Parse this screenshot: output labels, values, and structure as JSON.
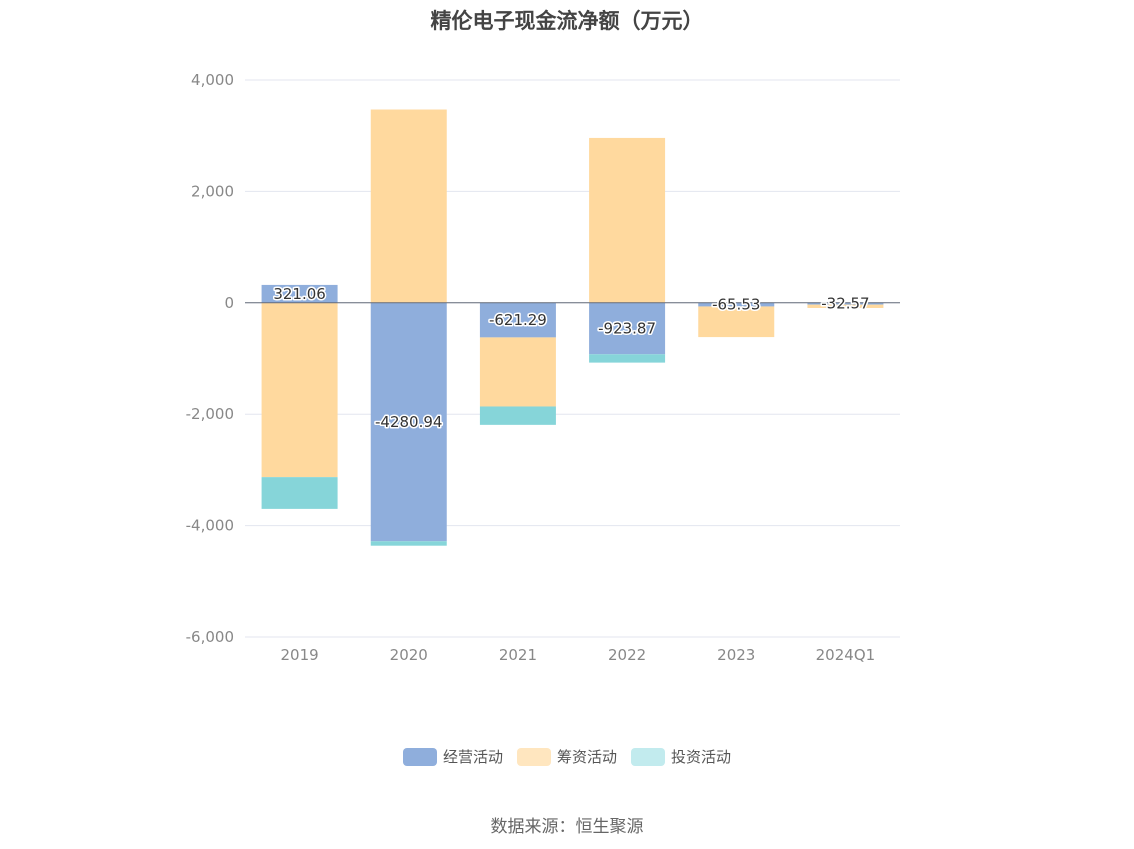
{
  "chart_data": {
    "type": "bar",
    "stacked": true,
    "title": "精伦电子现金流净额（万元）",
    "categories": [
      "2019",
      "2020",
      "2021",
      "2022",
      "2023",
      "2024Q1"
    ],
    "ylim": [
      -6000,
      4000
    ],
    "yticks": [
      4000,
      2000,
      0,
      -2000,
      -4000,
      -6000
    ],
    "ytick_labels": [
      "4,000",
      "2,000",
      "0",
      "-2,000",
      "-4,000",
      "-6,000"
    ],
    "grid": true,
    "legend_position": "bottom",
    "series": [
      {
        "name": "经营活动",
        "color": "#8faedc",
        "values": [
          321.06,
          -4280.94,
          -621.29,
          -923.87,
          -65.53,
          -32.57
        ],
        "labels": [
          "321.06",
          "-4280.94",
          "-621.29",
          "-923.87",
          "-65.53",
          "-32.57"
        ]
      },
      {
        "name": "筹资活动",
        "color": "#ffd99e",
        "values": [
          -3130,
          3470,
          -1240,
          2960,
          -550,
          -60
        ]
      },
      {
        "name": "投资活动",
        "color": "#86d5d9",
        "values": [
          -570,
          -80,
          -330,
          -150,
          0,
          0
        ]
      }
    ],
    "source": "数据来源：恒生聚源"
  },
  "legend_colors": [
    "#8faedc",
    "#ffe6bf",
    "#c2ebee"
  ]
}
